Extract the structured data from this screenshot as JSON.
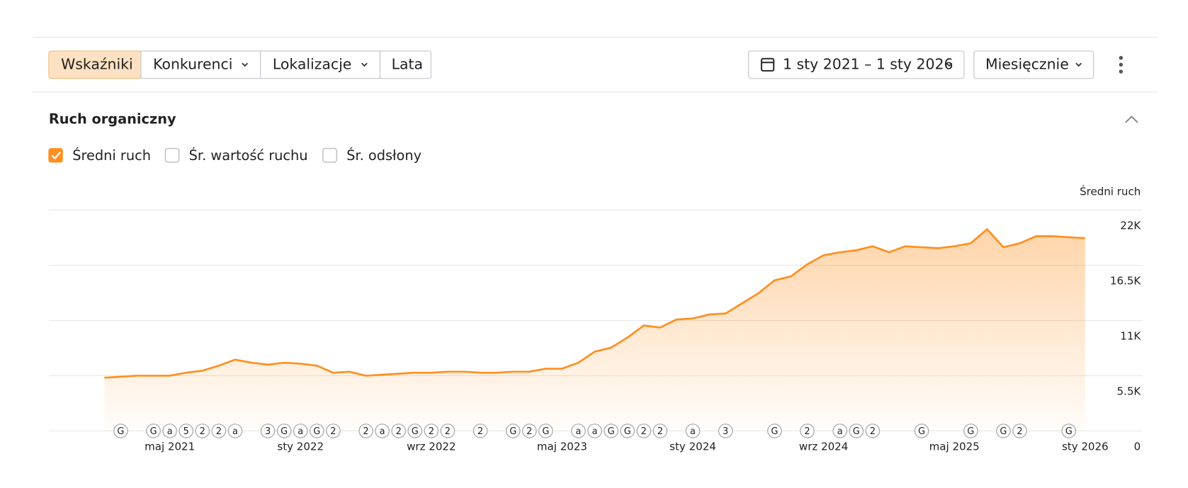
{
  "toolbar": {
    "tabs": [
      "Wskaźniki",
      "Konkurenci",
      "Lokalizacje",
      "Lata"
    ],
    "date_range": "1 sty 2021 – 1 sty 2026",
    "interval": "Miesięcznie"
  },
  "section": {
    "title": "Ruch organiczny",
    "metrics": [
      {
        "label": "Średni ruch",
        "checked": true
      },
      {
        "label": "Śr. wartość ruchu",
        "checked": false
      },
      {
        "label": "Śr. odsłony",
        "checked": false
      }
    ]
  },
  "chart_data": {
    "type": "area",
    "y_label": "Średni ruch",
    "categories": [
      null,
      null,
      null,
      null,
      "maj 2021",
      null,
      null,
      null,
      null,
      null,
      null,
      null,
      "sty 2022",
      null,
      null,
      null,
      null,
      null,
      null,
      null,
      "wrz 2022",
      null,
      null,
      null,
      null,
      null,
      null,
      null,
      "maj 2023",
      null,
      null,
      null,
      null,
      null,
      null,
      null,
      "sty 2024",
      null,
      null,
      null,
      null,
      null,
      null,
      null,
      "wrz 2024",
      null,
      null,
      null,
      null,
      null,
      null,
      null,
      "maj 2025",
      null,
      null,
      null,
      null,
      null,
      null,
      null,
      "sty 2026"
    ],
    "markers": [
      null,
      "G",
      null,
      "G",
      "a",
      "5",
      "2",
      "2",
      "a",
      null,
      "3",
      "G",
      "a",
      "G",
      "2",
      null,
      "2",
      "a",
      "2",
      "G",
      "2",
      "2",
      null,
      "2",
      null,
      "G",
      "2",
      "G",
      null,
      "a",
      "a",
      "G",
      "G",
      "2",
      "2",
      null,
      "a",
      null,
      "3",
      null,
      null,
      "G",
      null,
      "2",
      null,
      "a",
      "G",
      "2",
      null,
      null,
      "G",
      null,
      null,
      "G",
      null,
      "G",
      "2",
      null,
      null,
      "G",
      null
    ],
    "series": [
      {
        "name": "Średni ruch",
        "color": "#ff8f1f",
        "values": [
          5300,
          5400,
          5500,
          5500,
          5500,
          5800,
          6000,
          6500,
          7100,
          6800,
          6600,
          6800,
          6700,
          6500,
          5800,
          5900,
          5500,
          5600,
          5700,
          5800,
          5800,
          5900,
          5900,
          5800,
          5800,
          5900,
          5900,
          6200,
          6200,
          6800,
          7900,
          8300,
          9300,
          10500,
          10300,
          11100,
          11200,
          11600,
          11700,
          12700,
          13700,
          15000,
          15400,
          16600,
          17500,
          17800,
          18000,
          18400,
          17800,
          18400,
          18300,
          18200,
          18400,
          18700,
          20100,
          18300,
          18700,
          19400,
          19400,
          19300,
          19200
        ]
      }
    ],
    "ylim": [
      0,
      22000
    ],
    "yticks": [
      0,
      {
        "value": 5500,
        "label": "5.5K"
      },
      {
        "value": 11000,
        "label": "11K"
      },
      {
        "value": 16500,
        "label": "16.5K"
      },
      {
        "value": 22000,
        "label": "22K"
      }
    ],
    "grid": true
  }
}
